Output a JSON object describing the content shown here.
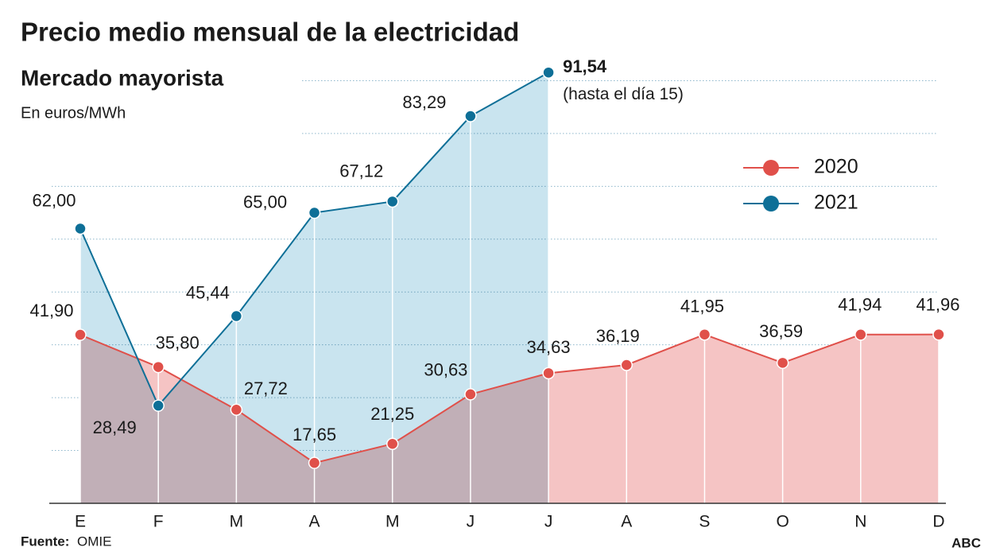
{
  "chart_data": {
    "type": "line",
    "title": "Precio medio mensual de la electricidad",
    "subtitle": "Mercado mayorista",
    "y_label": "En euros/MWh",
    "categories": [
      "E",
      "F",
      "M",
      "A",
      "M",
      "J",
      "J",
      "A",
      "S",
      "O",
      "N",
      "D"
    ],
    "series": [
      {
        "name": "2020",
        "color": "#e0504a",
        "area_color": "#f5c4c4",
        "values": [
          41.9,
          35.8,
          27.72,
          17.65,
          21.25,
          30.63,
          34.63,
          36.19,
          41.95,
          36.59,
          41.94,
          41.96
        ],
        "value_labels": [
          "41,90",
          "35,80",
          "27,72",
          "17,65",
          "21,25",
          "30,63",
          "34,63",
          "36,19",
          "41,95",
          "36,59",
          "41,94",
          "41,96"
        ]
      },
      {
        "name": "2021",
        "color": "#0e6f97",
        "area_color": "#c9e4ef",
        "values": [
          62.0,
          28.49,
          45.44,
          65.0,
          67.12,
          83.29,
          91.54,
          null,
          null,
          null,
          null,
          null
        ],
        "value_labels": [
          "62,00",
          "28,49",
          "45,44",
          "65,00",
          "67,12",
          "83,29",
          "91,54",
          null,
          null,
          null,
          null,
          null
        ]
      }
    ],
    "annotation": "(hasta el día 15)",
    "ylim": [
      10,
      100
    ],
    "yticks": [
      20,
      30,
      40,
      50,
      60,
      70,
      80,
      90
    ],
    "grid": true,
    "legend": "upper right",
    "source_label": "Fuente:",
    "source": "OMIE",
    "brand": "ABC"
  }
}
